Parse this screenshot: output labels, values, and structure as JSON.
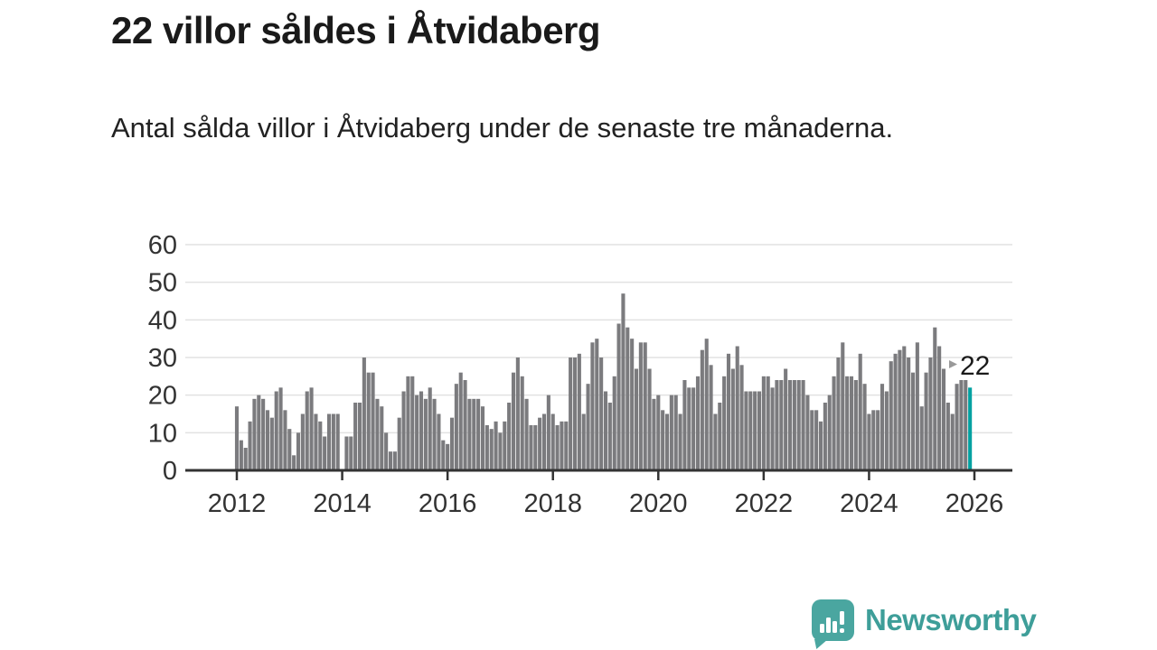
{
  "title": "22 villor såldes i Åtvidaberg",
  "subtitle": "Antal sålda villor i Åtvidaberg under de senaste tre månaderna.",
  "annotation": {
    "label": "22",
    "arrow_icon": "right-triangle"
  },
  "logo": {
    "text": "Newsworthy",
    "icon": "speech-bubble-bar-chart"
  },
  "colors": {
    "bar": "#7b7b7e",
    "highlight": "#00a1a1",
    "gridline": "#e2e2e2",
    "axis": "#333333",
    "tick_label": "#333333",
    "annotation_text": "#1a1a1a",
    "annotation_arrow": "#999999",
    "logo_teal": "#4aa6a0",
    "logo_text_teal": "#3e9e99"
  },
  "chart_data": {
    "type": "bar",
    "title": "22 villor såldes i Åtvidaberg",
    "subtitle": "Antal sålda villor i Åtvidaberg under de senaste tre månaderna.",
    "x_start": "2012-01",
    "x_interval": "month",
    "xlabel": "",
    "ylabel": "",
    "ylim": [
      0,
      60
    ],
    "yticks": [
      0,
      10,
      20,
      30,
      40,
      50,
      60
    ],
    "xticks": [
      2012,
      2014,
      2016,
      2018,
      2020,
      2022,
      2024,
      2026
    ],
    "grid": true,
    "legend": false,
    "highlight_last": true,
    "annotation_value": 22,
    "values": [
      17,
      8,
      6,
      13,
      19,
      20,
      19,
      16,
      14,
      21,
      22,
      16,
      11,
      4,
      10,
      15,
      21,
      22,
      15,
      13,
      9,
      15,
      15,
      15,
      0,
      9,
      9,
      18,
      18,
      30,
      26,
      26,
      19,
      17,
      10,
      5,
      5,
      14,
      21,
      25,
      25,
      20,
      21,
      19,
      22,
      19,
      15,
      8,
      7,
      14,
      23,
      26,
      24,
      19,
      19,
      19,
      17,
      12,
      11,
      13,
      10,
      13,
      18,
      26,
      30,
      25,
      19,
      12,
      12,
      14,
      15,
      20,
      15,
      12,
      13,
      13,
      30,
      30,
      31,
      15,
      23,
      34,
      35,
      30,
      21,
      18,
      25,
      39,
      47,
      38,
      35,
      27,
      34,
      34,
      27,
      19,
      20,
      16,
      15,
      20,
      20,
      15,
      24,
      22,
      22,
      25,
      32,
      35,
      28,
      15,
      18,
      25,
      31,
      27,
      33,
      28,
      21,
      21,
      21,
      21,
      25,
      25,
      22,
      24,
      24,
      27,
      24,
      24,
      24,
      24,
      20,
      16,
      16,
      13,
      18,
      20,
      25,
      30,
      34,
      25,
      25,
      24,
      31,
      23,
      15,
      16,
      16,
      23,
      21,
      29,
      31,
      32,
      33,
      30,
      26,
      34,
      17,
      26,
      30,
      38,
      33,
      27,
      18,
      15,
      23,
      24,
      24,
      22
    ]
  }
}
